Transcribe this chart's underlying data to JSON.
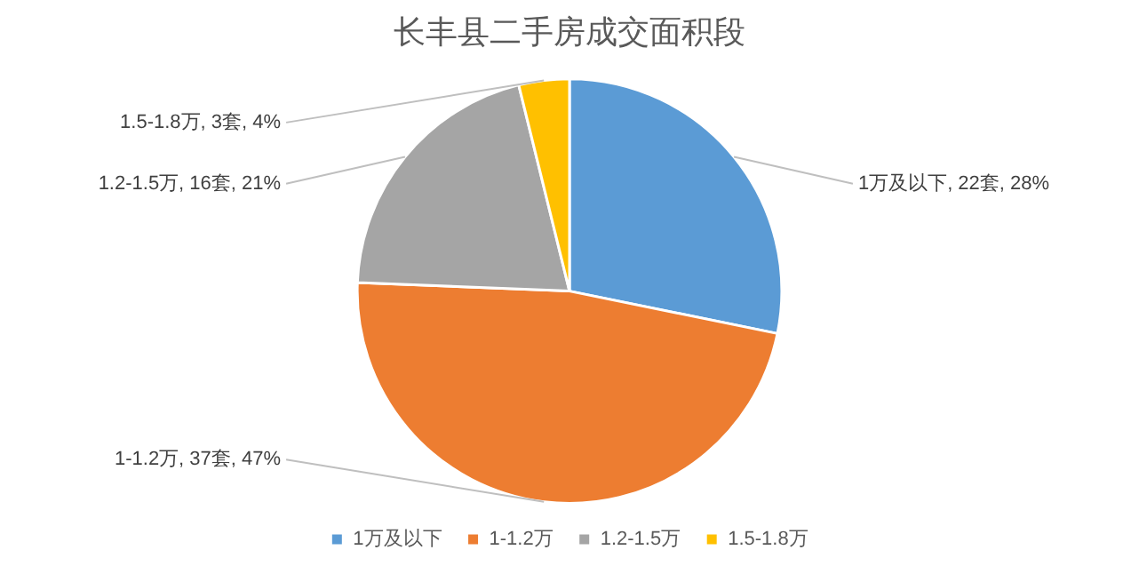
{
  "chart_data": {
    "type": "pie",
    "title": "长丰县二手房成交面积段",
    "categories": [
      "1万及以下",
      "1-1.2万",
      "1.2-1.5万",
      "1.5-1.8万"
    ],
    "values": [
      22,
      37,
      16,
      3
    ],
    "value_labels": [
      "1万及以下, 22套, 28%",
      "1-1.2万, 37套, 47%",
      "1.2-1.5万, 16套, 21%",
      "1.5-1.8万, 3套, 4%"
    ],
    "colors": [
      "#5b9bd5",
      "#ed7d31",
      "#a5a5a5",
      "#ffc000"
    ],
    "legend": "bottom"
  }
}
